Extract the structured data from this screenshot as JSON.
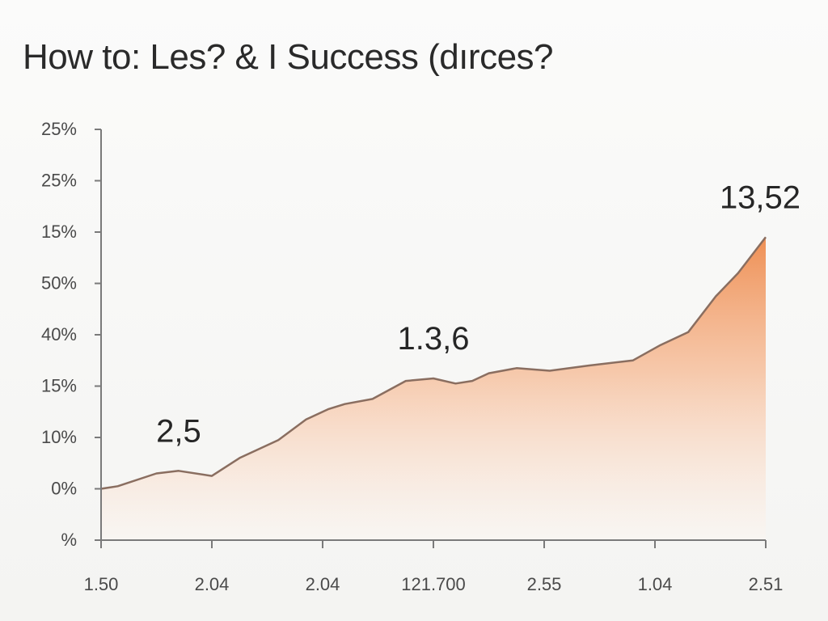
{
  "title": "How to: Les? & I Success (dırces?",
  "colors": {
    "area_top": "#ee8a4c",
    "area_bottom": "#fff6f0",
    "line": "#8a6e60",
    "axis": "#7a7a7a"
  },
  "chart_data": {
    "type": "area",
    "title": "How to: Les? & I Success (dırces?",
    "xlabel": "",
    "ylabel": "",
    "x_tick_labels": [
      "1.50",
      "2.04",
      "2.04",
      "121.700",
      "2.55",
      "1.04",
      "2.51"
    ],
    "y_tick_labels": [
      "%",
      "0%",
      "10%",
      "15%",
      "40%",
      "50%",
      "15%",
      "25%",
      "25%"
    ],
    "ylim": [
      0,
      8
    ],
    "xlim": [
      0,
      6
    ],
    "grid": false,
    "legend": "none",
    "series": [
      {
        "x": [
          0,
          0.15,
          0.5,
          0.7,
          1.0,
          1.25,
          1.6,
          1.85,
          2.05,
          2.2,
          2.45,
          2.75,
          3.0,
          3.2,
          3.35,
          3.5,
          3.75,
          4.05,
          4.4,
          4.8,
          5.05,
          5.3,
          5.55,
          5.75,
          6.0
        ],
        "y": [
          1.0,
          1.05,
          1.3,
          1.35,
          1.25,
          1.6,
          1.95,
          2.35,
          2.55,
          2.65,
          2.75,
          3.1,
          3.15,
          3.05,
          3.1,
          3.25,
          3.35,
          3.3,
          3.4,
          3.5,
          3.8,
          4.05,
          4.75,
          5.2,
          5.9
        ]
      }
    ],
    "annotations": [
      {
        "text": "2,5",
        "x": 0.7,
        "y": 1.35
      },
      {
        "text": "1.3,6",
        "x": 3.0,
        "y": 3.15
      },
      {
        "text": "13,52",
        "x": 6.0,
        "y": 5.9
      }
    ]
  }
}
